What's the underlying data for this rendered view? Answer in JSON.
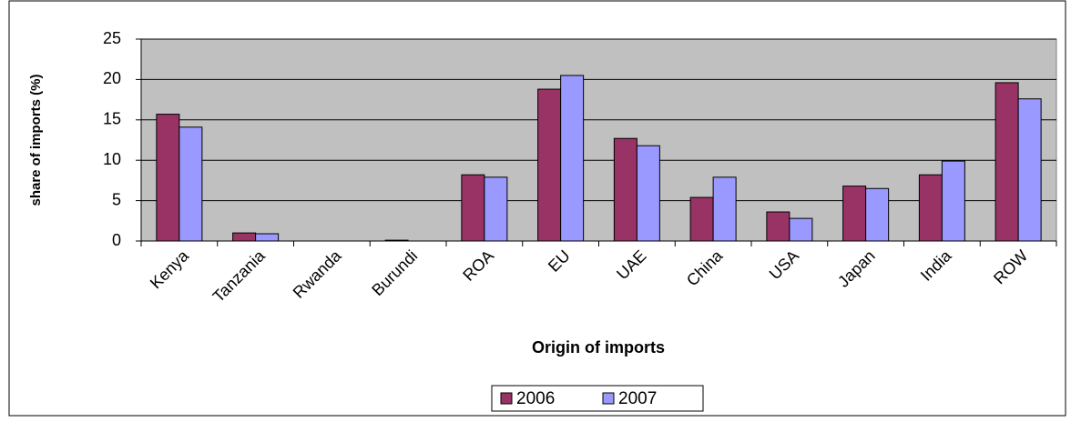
{
  "chart_data": {
    "type": "bar",
    "categories": [
      "Kenya",
      "Tanzania",
      "Rwanda",
      "Burundi",
      "ROA",
      "EU",
      "UAE",
      "China",
      "USA",
      "Japan",
      "India",
      "ROW"
    ],
    "series": [
      {
        "name": "2006",
        "color": "#993366",
        "values": [
          15.7,
          1.0,
          0,
          0.1,
          8.2,
          18.8,
          12.7,
          5.4,
          3.6,
          6.8,
          8.2,
          19.6
        ]
      },
      {
        "name": "2007",
        "color": "#9999ff",
        "values": [
          14.1,
          0.9,
          0,
          0,
          7.9,
          20.5,
          11.8,
          7.9,
          2.8,
          6.5,
          9.9,
          17.6
        ]
      }
    ],
    "ylabel": "share of imports (%)",
    "xlabel": "Origin of imports",
    "ylim": [
      0,
      25
    ],
    "yticks": [
      0,
      5,
      10,
      15,
      20,
      25
    ],
    "grid": true,
    "legend": "bottom"
  }
}
